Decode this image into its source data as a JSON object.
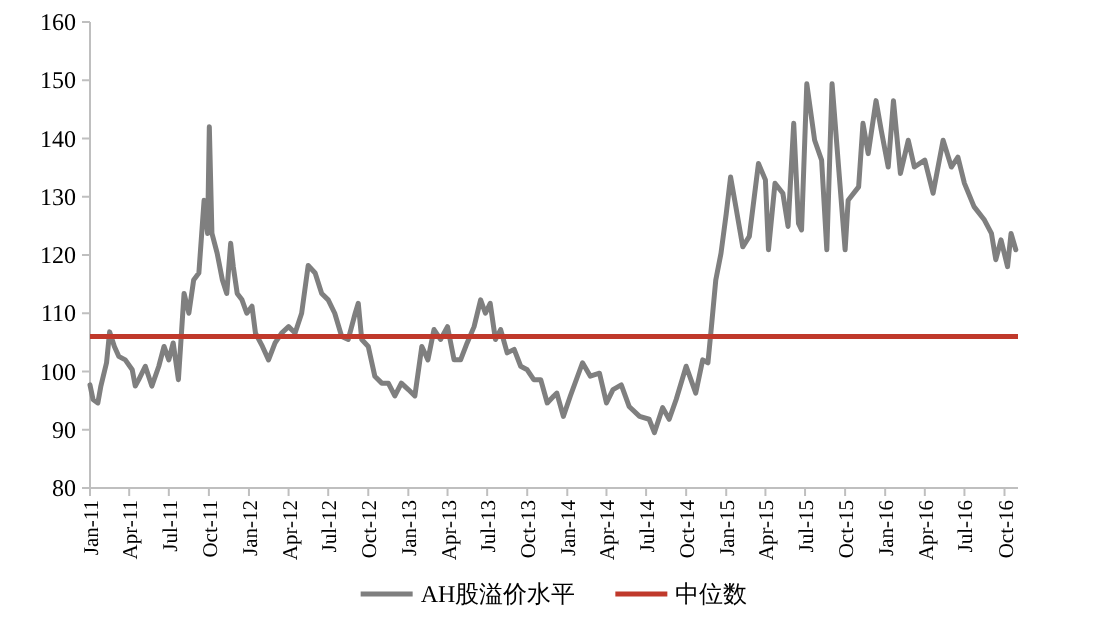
{
  "chart_data": {
    "type": "line",
    "x": [
      "2011-01-01",
      "2011-01-08",
      "2011-01-19",
      "2011-01-26",
      "2011-02-08",
      "2011-02-15",
      "2011-02-26",
      "2011-03-08",
      "2011-03-23",
      "2011-04-08",
      "2011-04-15",
      "2011-04-23",
      "2011-05-08",
      "2011-05-23",
      "2011-06-08",
      "2011-06-20",
      "2011-07-01",
      "2011-07-11",
      "2011-07-23",
      "2011-08-05",
      "2011-08-16",
      "2011-08-27",
      "2011-09-08",
      "2011-09-20",
      "2011-09-28",
      "2011-10-02",
      "2011-10-08",
      "2011-10-20",
      "2011-11-01",
      "2011-11-11",
      "2011-11-20",
      "2011-11-26",
      "2011-12-05",
      "2011-12-16",
      "2011-12-27",
      "2012-01-08",
      "2012-01-16",
      "2012-02-01",
      "2012-02-15",
      "2012-03-01",
      "2012-03-16",
      "2012-04-01",
      "2012-04-16",
      "2012-05-01",
      "2012-05-16",
      "2012-06-01",
      "2012-06-16",
      "2012-07-01",
      "2012-07-16",
      "2012-08-01",
      "2012-08-16",
      "2012-09-01",
      "2012-09-08",
      "2012-09-16",
      "2012-10-01",
      "2012-10-16",
      "2012-11-01",
      "2012-11-16",
      "2012-12-01",
      "2012-12-16",
      "2013-01-01",
      "2013-01-16",
      "2013-02-01",
      "2013-02-15",
      "2013-03-01",
      "2013-03-16",
      "2013-04-01",
      "2013-04-16",
      "2013-05-01",
      "2013-05-16",
      "2013-06-01",
      "2013-06-16",
      "2013-06-27",
      "2013-07-08",
      "2013-07-20",
      "2013-08-01",
      "2013-08-16",
      "2013-09-01",
      "2013-09-16",
      "2013-10-01",
      "2013-10-16",
      "2013-11-01",
      "2013-11-16",
      "2013-12-01",
      "2013-12-08",
      "2013-12-23",
      "2014-01-08",
      "2014-02-05",
      "2014-02-23",
      "2014-03-16",
      "2014-04-01",
      "2014-04-16",
      "2014-05-05",
      "2014-05-23",
      "2014-06-16",
      "2014-07-08",
      "2014-07-20",
      "2014-08-08",
      "2014-08-23",
      "2014-09-08",
      "2014-10-01",
      "2014-10-23",
      "2014-11-08",
      "2014-11-20",
      "2014-11-28",
      "2014-12-08",
      "2014-12-20",
      "2015-01-01",
      "2015-01-11",
      "2015-01-23",
      "2015-02-08",
      "2015-02-23",
      "2015-03-16",
      "2015-04-01",
      "2015-04-08",
      "2015-04-23",
      "2015-05-11",
      "2015-05-23",
      "2015-06-05",
      "2015-06-16",
      "2015-06-23",
      "2015-07-05",
      "2015-07-23",
      "2015-08-08",
      "2015-08-20",
      "2015-09-01",
      "2015-09-16",
      "2015-10-01",
      "2015-10-08",
      "2015-11-01",
      "2015-11-11",
      "2015-11-23",
      "2015-12-11",
      "2015-12-23",
      "2016-01-08",
      "2016-01-20",
      "2016-02-05",
      "2016-02-23",
      "2016-03-08",
      "2016-04-01",
      "2016-04-20",
      "2016-05-13",
      "2016-06-01",
      "2016-06-16",
      "2016-07-01",
      "2016-07-23",
      "2016-08-16",
      "2016-09-01",
      "2016-09-11",
      "2016-09-23",
      "2016-10-08",
      "2016-10-16",
      "2016-10-27"
    ],
    "series": [
      {
        "name": "AH股溢价水平",
        "color": "#7f7f7f",
        "values": [
          97.7,
          95.2,
          94.6,
          97.5,
          101.5,
          106.8,
          104.3,
          102.6,
          102,
          100.3,
          97.5,
          98.6,
          100.9,
          97.5,
          100.9,
          104.3,
          102,
          104.9,
          98.6,
          113.4,
          110,
          115.7,
          116.9,
          129.4,
          123.7,
          142,
          123.7,
          120.3,
          115.7,
          113.4,
          122,
          118,
          113.4,
          112.3,
          110,
          111.2,
          106.6,
          104.3,
          102,
          104.9,
          106.6,
          107.7,
          106.6,
          110,
          118.2,
          116.9,
          113.4,
          112.3,
          110,
          106,
          105.5,
          110,
          111.7,
          105.5,
          104.3,
          99.2,
          98,
          98,
          95.8,
          98,
          96.9,
          95.8,
          104.3,
          102,
          107.2,
          105.5,
          107.7,
          102,
          102,
          104.9,
          107.7,
          112.3,
          110,
          111.7,
          105.5,
          107.2,
          103.2,
          103.8,
          100.9,
          100.3,
          98.6,
          98.6,
          94.6,
          95.8,
          96.3,
          92.3,
          95.8,
          101.5,
          99.2,
          99.7,
          94.6,
          96.9,
          97.7,
          94,
          92.3,
          91.8,
          89.5,
          93.8,
          91.8,
          95.2,
          100.9,
          96.3,
          102,
          101.5,
          107.7,
          115.7,
          120.3,
          127.1,
          133.4,
          128.3,
          121.4,
          123.2,
          135.7,
          132.9,
          120.9,
          132.3,
          130.6,
          124.9,
          142.6,
          125.4,
          124.3,
          149.4,
          139.7,
          136.3,
          120.9,
          149.4,
          135.1,
          120.9,
          129.4,
          131.7,
          142.6,
          137.4,
          146.5,
          141.4,
          135.1,
          146.5,
          134,
          139.7,
          135.1,
          136.3,
          130.6,
          139.7,
          135.1,
          136.8,
          132.3,
          128.3,
          126,
          123.7,
          119.2,
          122.6,
          118,
          123.7,
          120.9
        ]
      }
    ],
    "ref_lines": [
      {
        "axis": "y",
        "value": 106,
        "label": "中位数",
        "color": "#c0392b"
      }
    ],
    "xlim": [
      "2011-01-01",
      "2016-11-01"
    ],
    "xticks": [
      {
        "value": "2011-01-01",
        "label": "Jan-11"
      },
      {
        "value": "2011-04-01",
        "label": "Apr-11"
      },
      {
        "value": "2011-07-01",
        "label": "Jul-11"
      },
      {
        "value": "2011-10-01",
        "label": "Oct-11"
      },
      {
        "value": "2012-01-01",
        "label": "Jan-12"
      },
      {
        "value": "2012-04-01",
        "label": "Apr-12"
      },
      {
        "value": "2012-07-01",
        "label": "Jul-12"
      },
      {
        "value": "2012-10-01",
        "label": "Oct-12"
      },
      {
        "value": "2013-01-01",
        "label": "Jan-13"
      },
      {
        "value": "2013-04-01",
        "label": "Apr-13"
      },
      {
        "value": "2013-07-01",
        "label": "Jul-13"
      },
      {
        "value": "2013-10-01",
        "label": "Oct-13"
      },
      {
        "value": "2014-01-01",
        "label": "Jan-14"
      },
      {
        "value": "2014-04-01",
        "label": "Apr-14"
      },
      {
        "value": "2014-07-01",
        "label": "Jul-14"
      },
      {
        "value": "2014-10-01",
        "label": "Oct-14"
      },
      {
        "value": "2015-01-01",
        "label": "Jan-15"
      },
      {
        "value": "2015-04-01",
        "label": "Apr-15"
      },
      {
        "value": "2015-07-01",
        "label": "Jul-15"
      },
      {
        "value": "2015-10-01",
        "label": "Oct-15"
      },
      {
        "value": "2016-01-01",
        "label": "Jan-16"
      },
      {
        "value": "2016-04-01",
        "label": "Apr-16"
      },
      {
        "value": "2016-07-01",
        "label": "Jul-16"
      },
      {
        "value": "2016-10-01",
        "label": "Oct-16"
      }
    ],
    "ylim": [
      80,
      160
    ],
    "yticks": [
      80,
      90,
      100,
      110,
      120,
      130,
      140,
      150,
      160
    ],
    "legend": "bottom",
    "line_style": "solid"
  }
}
